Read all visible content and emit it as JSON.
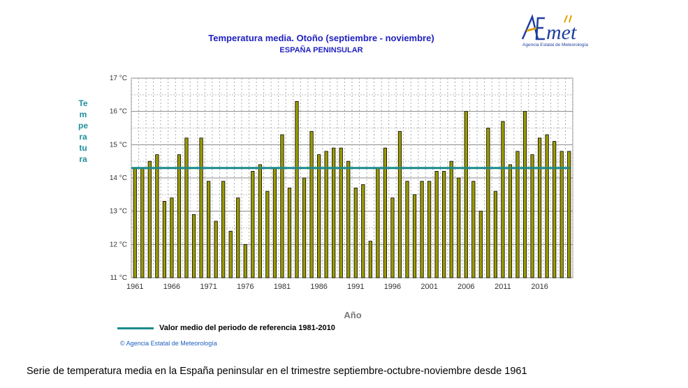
{
  "header": {
    "title": "Temperatura media. Otoño (septiembre - noviembre)",
    "subtitle": "ESPAÑA PENINSULAR"
  },
  "logo": {
    "brand": "AEmet",
    "tagline": "Agencia Estatal de Meteorología"
  },
  "footer": {
    "copyright": "Agencia Estatal de Meteorología",
    "copyright_symbol": "©"
  },
  "caption": "Serie de temperatura media en la España peninsular en el trimestre septiembre-octubre-noviembre desde 1961",
  "colors": {
    "bar_fill": "#9a9a00",
    "bar_stroke": "#000000",
    "reference_line": "#1a8a8a",
    "title": "#1f1fbf"
  },
  "chart_data": {
    "type": "bar",
    "title": "Temperatura media. Otoño (septiembre - noviembre)",
    "subtitle": "ESPAÑA PENINSULAR",
    "xlabel": "Año",
    "ylabel": "Temperatura",
    "ylim": [
      11,
      17
    ],
    "yticks": [
      11,
      12,
      13,
      14,
      15,
      16,
      17
    ],
    "ytick_labels": [
      "11 °C",
      "12 °C",
      "13 °C",
      "14 °C",
      "15 °C",
      "16 °C",
      "17 °C"
    ],
    "xtick_labels": [
      "1961",
      "1966",
      "1971",
      "1976",
      "1981",
      "1986",
      "1991",
      "1996",
      "2001",
      "2006",
      "2011",
      "2016"
    ],
    "categories": [
      1961,
      1962,
      1963,
      1964,
      1965,
      1966,
      1967,
      1968,
      1969,
      1970,
      1971,
      1972,
      1973,
      1974,
      1975,
      1976,
      1977,
      1978,
      1979,
      1980,
      1981,
      1982,
      1983,
      1984,
      1985,
      1986,
      1987,
      1988,
      1989,
      1990,
      1991,
      1992,
      1993,
      1994,
      1995,
      1996,
      1997,
      1998,
      1999,
      2000,
      2001,
      2002,
      2003,
      2004,
      2005,
      2006,
      2007,
      2008,
      2009,
      2010,
      2011,
      2012,
      2013,
      2014,
      2015,
      2016,
      2017,
      2018,
      2019,
      2020
    ],
    "values": [
      14.3,
      14.3,
      14.5,
      14.7,
      13.3,
      13.4,
      14.7,
      15.2,
      12.9,
      15.2,
      13.9,
      12.7,
      13.9,
      12.4,
      13.4,
      12.0,
      14.2,
      14.4,
      13.6,
      14.3,
      15.3,
      13.7,
      16.3,
      14.0,
      15.4,
      14.7,
      14.8,
      14.9,
      14.9,
      14.5,
      13.7,
      13.8,
      12.1,
      14.3,
      14.9,
      13.4,
      15.4,
      13.9,
      13.5,
      13.9,
      13.9,
      14.2,
      14.2,
      14.5,
      14.0,
      16.0,
      13.9,
      13.0,
      15.5,
      13.6,
      15.7,
      14.4,
      14.8,
      16.0,
      14.7,
      15.2,
      15.3,
      15.1,
      14.8,
      14.8
    ],
    "reference": {
      "label": "Valor medio del periodo de referencia 1981-2010",
      "value": 14.3
    },
    "grid": true,
    "legend_position": "bottom-left"
  }
}
